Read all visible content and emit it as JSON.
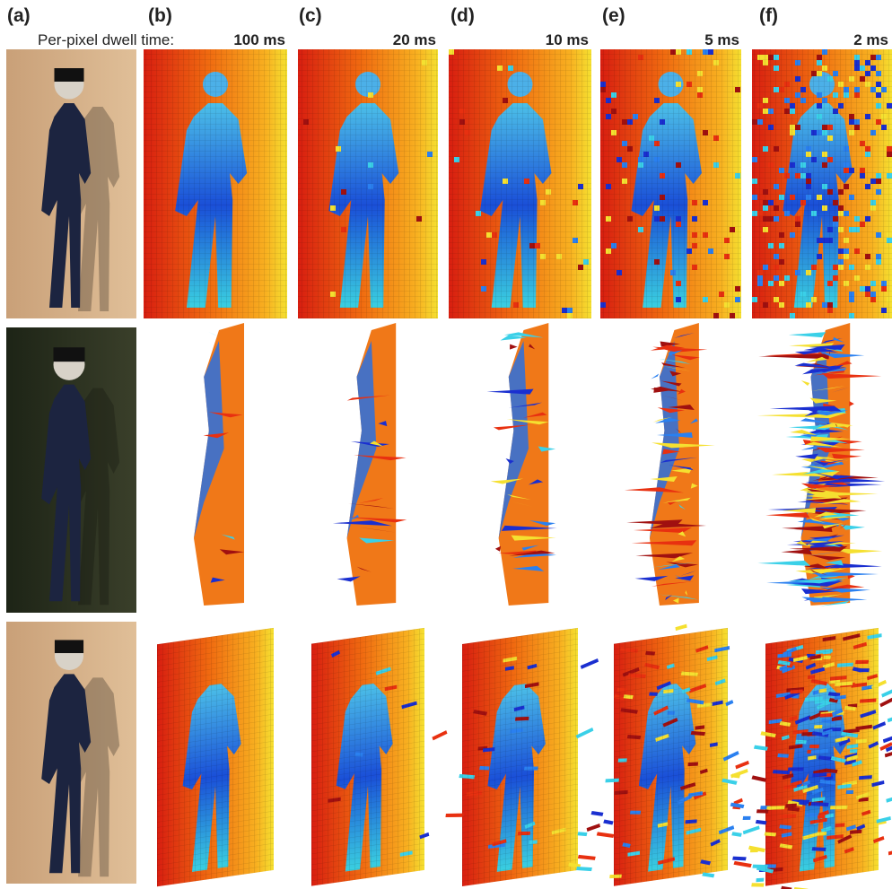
{
  "caption": "Per-pixel dwell time:",
  "panels": [
    {
      "label": "(a)"
    },
    {
      "label": "(b)",
      "dwell_time": "100 ms"
    },
    {
      "label": "(c)",
      "dwell_time": "20 ms"
    },
    {
      "label": "(d)",
      "dwell_time": "10 ms"
    },
    {
      "label": "(e)",
      "dwell_time": "5 ms"
    },
    {
      "label": "(f)",
      "dwell_time": "2 ms"
    }
  ]
}
